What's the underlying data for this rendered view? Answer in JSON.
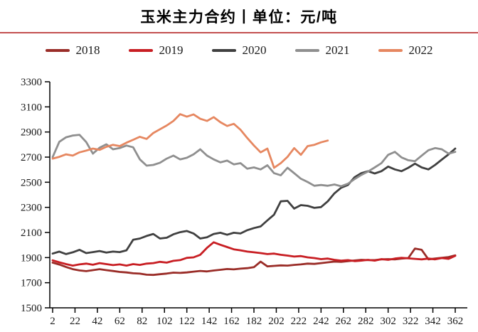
{
  "title": "玉米主力合约丨单位：元/吨",
  "divider_color": "#c35050",
  "legend": [
    {
      "label": "2018",
      "color": "#9a2d28"
    },
    {
      "label": "2019",
      "color": "#c81e23"
    },
    {
      "label": "2020",
      "color": "#404040"
    },
    {
      "label": "2021",
      "color": "#8f8f8f"
    },
    {
      "label": "2022",
      "color": "#e68760"
    }
  ],
  "chart_data": {
    "type": "line",
    "title": "玉米主力合约丨单位：元/吨",
    "unit": "元/吨",
    "xlabel": "",
    "ylabel": "",
    "grid": false,
    "legend_position": "top",
    "x_range": [
      2,
      362
    ],
    "ylim": [
      1500,
      3300
    ],
    "x_ticks": [
      2,
      22,
      42,
      62,
      82,
      102,
      122,
      142,
      162,
      182,
      202,
      222,
      242,
      262,
      282,
      302,
      322,
      342,
      362
    ],
    "y_ticks": [
      1500,
      1700,
      1900,
      2100,
      2300,
      2500,
      2700,
      2900,
      3100,
      3300
    ],
    "series": [
      {
        "name": "2018",
        "color": "#9a2d28",
        "points": [
          [
            2,
            1860
          ],
          [
            8,
            1845
          ],
          [
            14,
            1825
          ],
          [
            20,
            1808
          ],
          [
            26,
            1798
          ],
          [
            32,
            1792
          ],
          [
            38,
            1800
          ],
          [
            44,
            1808
          ],
          [
            50,
            1800
          ],
          [
            56,
            1793
          ],
          [
            62,
            1786
          ],
          [
            68,
            1782
          ],
          [
            74,
            1775
          ],
          [
            80,
            1772
          ],
          [
            86,
            1764
          ],
          [
            92,
            1762
          ],
          [
            98,
            1768
          ],
          [
            104,
            1773
          ],
          [
            110,
            1780
          ],
          [
            116,
            1778
          ],
          [
            122,
            1782
          ],
          [
            128,
            1788
          ],
          [
            134,
            1794
          ],
          [
            140,
            1790
          ],
          [
            146,
            1797
          ],
          [
            152,
            1803
          ],
          [
            158,
            1809
          ],
          [
            164,
            1806
          ],
          [
            170,
            1812
          ],
          [
            176,
            1816
          ],
          [
            182,
            1824
          ],
          [
            188,
            1868
          ],
          [
            194,
            1830
          ],
          [
            200,
            1834
          ],
          [
            206,
            1838
          ],
          [
            212,
            1836
          ],
          [
            218,
            1842
          ],
          [
            224,
            1846
          ],
          [
            230,
            1852
          ],
          [
            236,
            1850
          ],
          [
            242,
            1856
          ],
          [
            248,
            1862
          ],
          [
            254,
            1868
          ],
          [
            260,
            1866
          ],
          [
            266,
            1872
          ],
          [
            272,
            1877
          ],
          [
            278,
            1882
          ],
          [
            284,
            1880
          ],
          [
            290,
            1880
          ],
          [
            296,
            1886
          ],
          [
            302,
            1888
          ],
          [
            308,
            1886
          ],
          [
            314,
            1892
          ],
          [
            320,
            1896
          ],
          [
            326,
            1972
          ],
          [
            332,
            1962
          ],
          [
            338,
            1886
          ],
          [
            344,
            1892
          ],
          [
            350,
            1898
          ],
          [
            356,
            1904
          ],
          [
            362,
            1918
          ]
        ]
      },
      {
        "name": "2019",
        "color": "#c81e23",
        "points": [
          [
            2,
            1878
          ],
          [
            8,
            1862
          ],
          [
            14,
            1848
          ],
          [
            20,
            1836
          ],
          [
            26,
            1846
          ],
          [
            32,
            1852
          ],
          [
            38,
            1843
          ],
          [
            44,
            1856
          ],
          [
            50,
            1848
          ],
          [
            56,
            1840
          ],
          [
            62,
            1846
          ],
          [
            68,
            1836
          ],
          [
            74,
            1848
          ],
          [
            80,
            1842
          ],
          [
            86,
            1852
          ],
          [
            92,
            1856
          ],
          [
            98,
            1866
          ],
          [
            104,
            1860
          ],
          [
            110,
            1874
          ],
          [
            116,
            1880
          ],
          [
            122,
            1898
          ],
          [
            128,
            1902
          ],
          [
            134,
            1922
          ],
          [
            140,
            1978
          ],
          [
            146,
            2022
          ],
          [
            152,
            2002
          ],
          [
            158,
            1984
          ],
          [
            164,
            1966
          ],
          [
            170,
            1958
          ],
          [
            176,
            1948
          ],
          [
            182,
            1942
          ],
          [
            188,
            1936
          ],
          [
            194,
            1928
          ],
          [
            200,
            1932
          ],
          [
            206,
            1922
          ],
          [
            212,
            1916
          ],
          [
            218,
            1908
          ],
          [
            224,
            1912
          ],
          [
            230,
            1902
          ],
          [
            236,
            1896
          ],
          [
            242,
            1888
          ],
          [
            248,
            1892
          ],
          [
            254,
            1882
          ],
          [
            260,
            1876
          ],
          [
            266,
            1880
          ],
          [
            272,
            1872
          ],
          [
            278,
            1876
          ],
          [
            284,
            1882
          ],
          [
            290,
            1876
          ],
          [
            296,
            1888
          ],
          [
            302,
            1882
          ],
          [
            308,
            1892
          ],
          [
            314,
            1898
          ],
          [
            320,
            1894
          ],
          [
            326,
            1890
          ],
          [
            332,
            1886
          ],
          [
            338,
            1892
          ],
          [
            344,
            1886
          ],
          [
            350,
            1896
          ],
          [
            356,
            1890
          ],
          [
            362,
            1914
          ]
        ]
      },
      {
        "name": "2020",
        "color": "#404040",
        "points": [
          [
            2,
            1932
          ],
          [
            8,
            1948
          ],
          [
            14,
            1928
          ],
          [
            20,
            1942
          ],
          [
            26,
            1962
          ],
          [
            32,
            1936
          ],
          [
            38,
            1944
          ],
          [
            44,
            1952
          ],
          [
            50,
            1940
          ],
          [
            56,
            1948
          ],
          [
            62,
            1944
          ],
          [
            68,
            1958
          ],
          [
            74,
            2042
          ],
          [
            80,
            2052
          ],
          [
            86,
            2072
          ],
          [
            92,
            2088
          ],
          [
            98,
            2052
          ],
          [
            104,
            2058
          ],
          [
            110,
            2085
          ],
          [
            116,
            2102
          ],
          [
            122,
            2112
          ],
          [
            128,
            2092
          ],
          [
            134,
            2052
          ],
          [
            140,
            2062
          ],
          [
            146,
            2088
          ],
          [
            152,
            2098
          ],
          [
            158,
            2082
          ],
          [
            164,
            2098
          ],
          [
            170,
            2092
          ],
          [
            176,
            2118
          ],
          [
            182,
            2135
          ],
          [
            188,
            2148
          ],
          [
            194,
            2196
          ],
          [
            200,
            2242
          ],
          [
            206,
            2348
          ],
          [
            212,
            2352
          ],
          [
            218,
            2290
          ],
          [
            224,
            2318
          ],
          [
            230,
            2312
          ],
          [
            236,
            2296
          ],
          [
            242,
            2302
          ],
          [
            248,
            2348
          ],
          [
            254,
            2412
          ],
          [
            260,
            2456
          ],
          [
            266,
            2478
          ],
          [
            272,
            2540
          ],
          [
            278,
            2572
          ],
          [
            284,
            2588
          ],
          [
            290,
            2570
          ],
          [
            296,
            2588
          ],
          [
            302,
            2625
          ],
          [
            308,
            2602
          ],
          [
            314,
            2588
          ],
          [
            320,
            2615
          ],
          [
            326,
            2648
          ],
          [
            332,
            2618
          ],
          [
            338,
            2602
          ],
          [
            344,
            2638
          ],
          [
            350,
            2680
          ],
          [
            356,
            2722
          ],
          [
            362,
            2768
          ]
        ]
      },
      {
        "name": "2021",
        "color": "#8f8f8f",
        "points": [
          [
            2,
            2700
          ],
          [
            8,
            2822
          ],
          [
            14,
            2858
          ],
          [
            20,
            2872
          ],
          [
            26,
            2878
          ],
          [
            32,
            2820
          ],
          [
            38,
            2728
          ],
          [
            44,
            2775
          ],
          [
            50,
            2802
          ],
          [
            56,
            2762
          ],
          [
            62,
            2772
          ],
          [
            68,
            2792
          ],
          [
            74,
            2778
          ],
          [
            80,
            2682
          ],
          [
            86,
            2632
          ],
          [
            92,
            2638
          ],
          [
            98,
            2655
          ],
          [
            104,
            2688
          ],
          [
            110,
            2712
          ],
          [
            116,
            2682
          ],
          [
            122,
            2695
          ],
          [
            128,
            2722
          ],
          [
            134,
            2762
          ],
          [
            140,
            2712
          ],
          [
            146,
            2682
          ],
          [
            152,
            2658
          ],
          [
            158,
            2672
          ],
          [
            164,
            2642
          ],
          [
            170,
            2652
          ],
          [
            176,
            2608
          ],
          [
            182,
            2618
          ],
          [
            188,
            2602
          ],
          [
            194,
            2635
          ],
          [
            200,
            2572
          ],
          [
            206,
            2555
          ],
          [
            212,
            2615
          ],
          [
            218,
            2572
          ],
          [
            224,
            2528
          ],
          [
            230,
            2502
          ],
          [
            236,
            2472
          ],
          [
            242,
            2478
          ],
          [
            248,
            2472
          ],
          [
            254,
            2482
          ],
          [
            260,
            2468
          ],
          [
            266,
            2488
          ],
          [
            272,
            2525
          ],
          [
            278,
            2558
          ],
          [
            284,
            2585
          ],
          [
            290,
            2618
          ],
          [
            296,
            2652
          ],
          [
            302,
            2718
          ],
          [
            308,
            2742
          ],
          [
            314,
            2698
          ],
          [
            320,
            2675
          ],
          [
            326,
            2668
          ],
          [
            332,
            2712
          ],
          [
            338,
            2755
          ],
          [
            344,
            2772
          ],
          [
            350,
            2762
          ],
          [
            356,
            2728
          ],
          [
            362,
            2742
          ]
        ]
      },
      {
        "name": "2022",
        "color": "#e68760",
        "points": [
          [
            2,
            2688
          ],
          [
            8,
            2702
          ],
          [
            14,
            2722
          ],
          [
            20,
            2712
          ],
          [
            26,
            2738
          ],
          [
            32,
            2752
          ],
          [
            38,
            2768
          ],
          [
            44,
            2758
          ],
          [
            50,
            2782
          ],
          [
            56,
            2798
          ],
          [
            62,
            2788
          ],
          [
            68,
            2815
          ],
          [
            74,
            2838
          ],
          [
            80,
            2862
          ],
          [
            86,
            2845
          ],
          [
            92,
            2892
          ],
          [
            98,
            2922
          ],
          [
            104,
            2952
          ],
          [
            110,
            2988
          ],
          [
            116,
            3042
          ],
          [
            122,
            3022
          ],
          [
            128,
            3040
          ],
          [
            134,
            3005
          ],
          [
            140,
            2988
          ],
          [
            146,
            3018
          ],
          [
            152,
            2978
          ],
          [
            158,
            2948
          ],
          [
            164,
            2965
          ],
          [
            170,
            2918
          ],
          [
            176,
            2852
          ],
          [
            182,
            2792
          ],
          [
            188,
            2738
          ],
          [
            194,
            2768
          ],
          [
            200,
            2615
          ],
          [
            206,
            2652
          ],
          [
            212,
            2702
          ],
          [
            218,
            2772
          ],
          [
            224,
            2718
          ],
          [
            230,
            2788
          ],
          [
            236,
            2798
          ],
          [
            242,
            2818
          ],
          [
            248,
            2832
          ]
        ]
      }
    ]
  }
}
